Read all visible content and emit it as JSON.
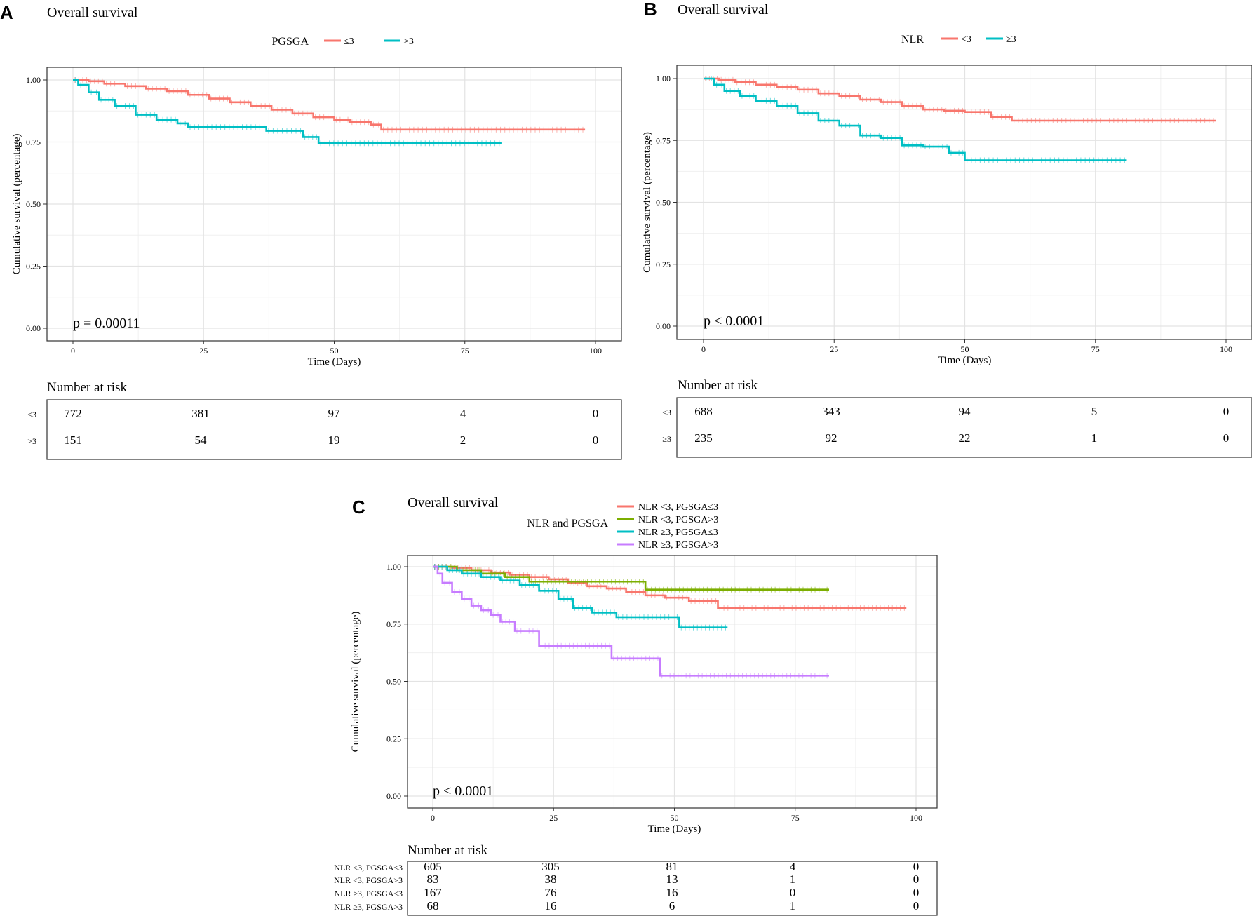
{
  "panels": [
    {
      "letter": "A",
      "title": "Overall survival",
      "legend_title": "PGSGA",
      "xlabel": "Time (Days)",
      "ylabel": "Cumulative survival (percentage)",
      "xticks": [
        "0",
        "25",
        "50",
        "75",
        "100"
      ],
      "yticks": [
        "0.00",
        "0.25",
        "0.50",
        "0.75",
        "1.00"
      ],
      "pvalue": "p = 0.00011",
      "risk_title": "Number at risk"
    },
    {
      "letter": "B",
      "title": "Overall survival",
      "legend_title": "NLR",
      "xlabel": "Time (Days)",
      "ylabel": "Cumulative survival (percentage)",
      "xticks": [
        "0",
        "25",
        "50",
        "75",
        "100"
      ],
      "yticks": [
        "0.00",
        "0.25",
        "0.50",
        "0.75",
        "1.00"
      ],
      "pvalue": "p < 0.0001",
      "risk_title": "Number at risk"
    },
    {
      "letter": "C",
      "title": "Overall survival",
      "legend_title": "NLR and PGSGA",
      "xlabel": "Time (Days)",
      "ylabel": "Cumulative survival (percentage)",
      "xticks": [
        "0",
        "25",
        "50",
        "75",
        "100"
      ],
      "yticks": [
        "0.00",
        "0.25",
        "0.50",
        "0.75",
        "1.00"
      ],
      "pvalue": "p < 0.0001",
      "risk_title": "Number at risk"
    }
  ],
  "chart_data": [
    {
      "type": "line",
      "subtype": "kaplan-meier",
      "title": "Overall survival",
      "xlabel": "Time (Days)",
      "ylabel": "Cumulative survival (percentage)",
      "xlim": [
        0,
        100
      ],
      "ylim": [
        0,
        1
      ],
      "series": [
        {
          "name": "≤3",
          "color": "#F8766D",
          "x": [
            0,
            3,
            6,
            10,
            14,
            18,
            22,
            26,
            30,
            34,
            38,
            42,
            46,
            50,
            53,
            57,
            59,
            98
          ],
          "y": [
            1.0,
            0.995,
            0.985,
            0.975,
            0.965,
            0.955,
            0.94,
            0.925,
            0.91,
            0.895,
            0.88,
            0.865,
            0.85,
            0.84,
            0.83,
            0.82,
            0.8,
            0.8
          ]
        },
        {
          "name": ">3",
          "color": "#00BFC4",
          "x": [
            0,
            1,
            3,
            5,
            8,
            12,
            16,
            20,
            22,
            37,
            44,
            47,
            82
          ],
          "y": [
            1.0,
            0.98,
            0.95,
            0.92,
            0.895,
            0.86,
            0.84,
            0.825,
            0.81,
            0.795,
            0.77,
            0.745,
            0.745
          ]
        }
      ],
      "risk_table": {
        "time_points": [
          0,
          25,
          50,
          75,
          100
        ],
        "rows": [
          {
            "label": "≤3",
            "values": [
              "772",
              "381",
              "97",
              "4",
              "0"
            ]
          },
          {
            "label": ">3",
            "values": [
              "151",
              "54",
              "19",
              "2",
              "0"
            ]
          }
        ]
      },
      "pvalue": "p = 0.00011"
    },
    {
      "type": "line",
      "subtype": "kaplan-meier",
      "title": "Overall survival",
      "xlabel": "Time (Days)",
      "ylabel": "Cumulative survival (percentage)",
      "xlim": [
        0,
        100
      ],
      "ylim": [
        0,
        1
      ],
      "series": [
        {
          "name": "<3",
          "color": "#F8766D",
          "x": [
            0,
            3,
            6,
            10,
            14,
            18,
            22,
            26,
            30,
            34,
            38,
            42,
            46,
            50,
            55,
            59,
            98
          ],
          "y": [
            1.0,
            0.995,
            0.985,
            0.975,
            0.965,
            0.955,
            0.94,
            0.93,
            0.915,
            0.905,
            0.89,
            0.875,
            0.87,
            0.865,
            0.845,
            0.83,
            0.83
          ]
        },
        {
          "name": "≥3",
          "color": "#00BFC4",
          "x": [
            0,
            2,
            4,
            7,
            10,
            14,
            18,
            22,
            26,
            30,
            34,
            38,
            42,
            47,
            50,
            81
          ],
          "y": [
            1.0,
            0.975,
            0.95,
            0.93,
            0.91,
            0.89,
            0.86,
            0.83,
            0.81,
            0.77,
            0.76,
            0.73,
            0.725,
            0.7,
            0.67,
            0.67
          ]
        }
      ],
      "risk_table": {
        "time_points": [
          0,
          25,
          50,
          75,
          100
        ],
        "rows": [
          {
            "label": "<3",
            "values": [
              "688",
              "343",
              "94",
              "5",
              "0"
            ]
          },
          {
            "label": "≥3",
            "values": [
              "235",
              "92",
              "22",
              "1",
              "0"
            ]
          }
        ]
      },
      "pvalue": "p < 0.0001"
    },
    {
      "type": "line",
      "subtype": "kaplan-meier",
      "title": "Overall survival",
      "legend_title": "NLR and PGSGA",
      "xlabel": "Time (Days)",
      "ylabel": "Cumulative survival (percentage)",
      "xlim": [
        0,
        100
      ],
      "ylim": [
        0,
        1
      ],
      "series": [
        {
          "name": "NLR <3, PGSGA≤3",
          "color": "#F8766D",
          "x": [
            0,
            4,
            8,
            12,
            16,
            20,
            24,
            28,
            32,
            36,
            40,
            44,
            48,
            53,
            59,
            98
          ],
          "y": [
            1.0,
            0.995,
            0.985,
            0.975,
            0.965,
            0.955,
            0.945,
            0.93,
            0.915,
            0.905,
            0.89,
            0.875,
            0.865,
            0.85,
            0.82,
            0.82
          ]
        },
        {
          "name": "NLR <3, PGSGA>3",
          "color": "#7CAE00",
          "x": [
            0,
            5,
            10,
            15,
            20,
            44,
            82
          ],
          "y": [
            1.0,
            0.985,
            0.97,
            0.955,
            0.935,
            0.9,
            0.9
          ]
        },
        {
          "name": "NLR ≥3, PGSGA≤3",
          "color": "#00BFC4",
          "x": [
            0,
            3,
            6,
            10,
            14,
            18,
            22,
            26,
            29,
            33,
            38,
            45,
            51,
            61
          ],
          "y": [
            1.0,
            0.985,
            0.97,
            0.955,
            0.94,
            0.92,
            0.895,
            0.86,
            0.82,
            0.8,
            0.78,
            0.78,
            0.735,
            0.735
          ]
        },
        {
          "name": "NLR ≥3, PGSGA>3",
          "color": "#C77CFF",
          "x": [
            0,
            1,
            2,
            4,
            6,
            8,
            10,
            12,
            14,
            17,
            22,
            37,
            47,
            82
          ],
          "y": [
            1.0,
            0.97,
            0.93,
            0.89,
            0.86,
            0.83,
            0.81,
            0.79,
            0.76,
            0.72,
            0.655,
            0.6,
            0.525,
            0.525
          ]
        }
      ],
      "risk_table": {
        "time_points": [
          0,
          25,
          50,
          75,
          100
        ],
        "rows": [
          {
            "label": "NLR <3, PGSGA≤3",
            "values": [
              "605",
              "305",
              "81",
              "4",
              "0"
            ]
          },
          {
            "label": "NLR <3, PGSGA>3",
            "values": [
              "83",
              "38",
              "13",
              "1",
              "0"
            ]
          },
          {
            "label": "NLR ≥3, PGSGA≤3",
            "values": [
              "167",
              "76",
              "16",
              "0",
              "0"
            ]
          },
          {
            "label": "NLR ≥3, PGSGA>3",
            "values": [
              "68",
              "16",
              "6",
              "1",
              "0"
            ]
          }
        ]
      },
      "pvalue": "p < 0.0001"
    }
  ]
}
